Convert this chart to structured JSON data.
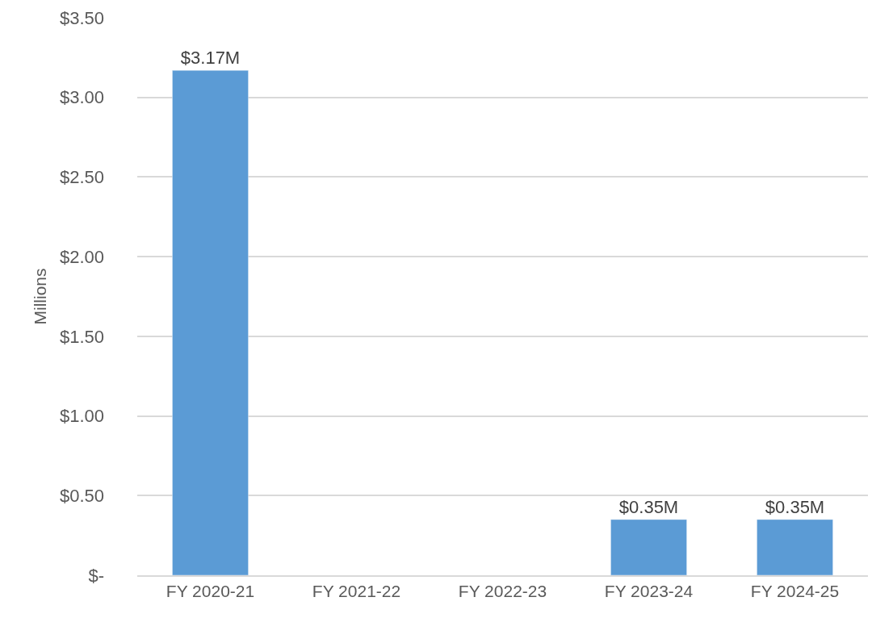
{
  "chart_data": {
    "type": "bar",
    "ylabel": "Millions",
    "categories": [
      "FY 2020-21",
      "FY 2021-22",
      "FY 2022-23",
      "FY 2023-24",
      "FY 2024-25"
    ],
    "values": [
      3.17,
      null,
      null,
      0.35,
      0.35
    ],
    "value_labels": [
      "$3.17M",
      null,
      null,
      "$0.35M",
      "$0.35M"
    ],
    "color": "#5b9bd5",
    "ylim": [
      0,
      3.5
    ],
    "yticks": [
      {
        "value": 0,
        "label": "$-"
      },
      {
        "value": 0.5,
        "label": "$0.50"
      },
      {
        "value": 1,
        "label": "$1.00"
      },
      {
        "value": 1.5,
        "label": "$1.50"
      },
      {
        "value": 2,
        "label": "$2.00"
      },
      {
        "value": 2.5,
        "label": "$2.50"
      },
      {
        "value": 3,
        "label": "$3.00"
      },
      {
        "value": 3.5,
        "label": "$3.50"
      }
    ],
    "grid": "y",
    "legend": false
  }
}
